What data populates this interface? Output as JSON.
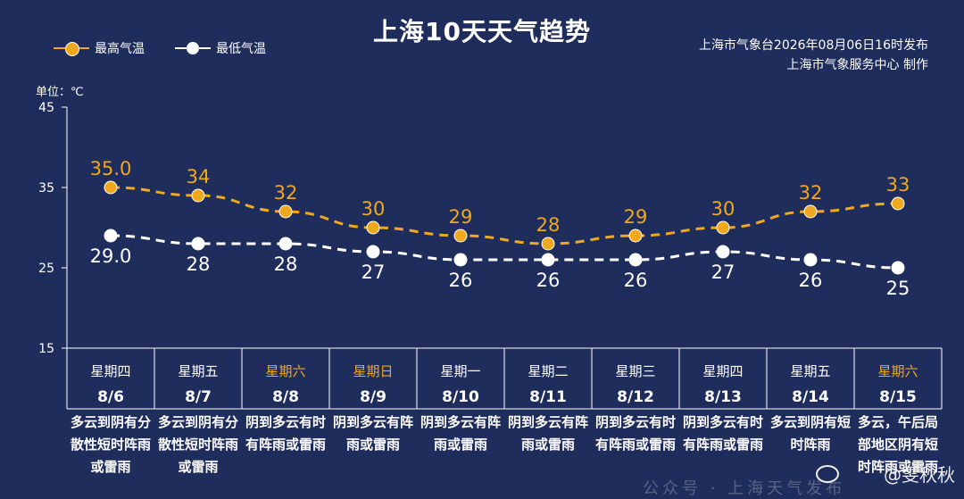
{
  "title": "上海10天天气趋势",
  "legend": {
    "high_label": "最高气温",
    "low_label": "最低气温"
  },
  "source": {
    "line1": "上海市气象台2026年08月06日16时发布",
    "line2": "上海市气象服务中心  制作"
  },
  "unit_label": "单位：℃",
  "watermark": "@雯秋秋",
  "faded_footer": "公众号 · 上海天气发布",
  "colors": {
    "background": "#1f2d5c",
    "high": "#f0a81c",
    "low": "#ffffff",
    "weekend_text": "#f0a81c",
    "grid": "#ffffff"
  },
  "chart_data": {
    "type": "line",
    "title": "上海10天天气趋势",
    "ylabel": "单位：℃",
    "ylim": [
      15,
      45
    ],
    "yticks": [
      15,
      25,
      35,
      45
    ],
    "categories": [
      "8/6",
      "8/7",
      "8/8",
      "8/9",
      "8/10",
      "8/11",
      "8/12",
      "8/13",
      "8/14",
      "8/15"
    ],
    "weekdays": [
      "星期四",
      "星期五",
      "星期六",
      "星期日",
      "星期一",
      "星期二",
      "星期三",
      "星期四",
      "星期五",
      "星期六"
    ],
    "weekend": [
      false,
      false,
      true,
      true,
      false,
      false,
      false,
      false,
      false,
      true
    ],
    "weather": [
      "多云到阴有分散性短时阵雨或雷雨",
      "多云到阴有分散性短时阵雨或雷雨",
      "阴到多云有时有阵雨或雷雨",
      "阴到多云有阵雨或雷雨",
      "阴到多云有阵雨或雷雨",
      "阴到多云有阵雨或雷雨",
      "阴到多云有时有阵雨或雷雨",
      "阴到多云有时有阵雨或雷雨",
      "多云到阴有短时阵雨",
      "多云，午后局部地区阴有短时阵雨或雷雨"
    ],
    "series": [
      {
        "name": "最高气温",
        "values": [
          35.0,
          34,
          32,
          30,
          29,
          28,
          29,
          30,
          32,
          33
        ],
        "labels": [
          "35.0",
          "34",
          "32",
          "30",
          "29",
          "28",
          "29",
          "30",
          "32",
          "33"
        ]
      },
      {
        "name": "最低气温",
        "values": [
          29.0,
          28,
          28,
          27,
          26,
          26,
          26,
          27,
          26,
          25
        ],
        "labels": [
          "29.0",
          "28",
          "28",
          "27",
          "26",
          "26",
          "26",
          "27",
          "26",
          "25"
        ]
      }
    ],
    "legend_position": "top-left",
    "grid": false
  }
}
